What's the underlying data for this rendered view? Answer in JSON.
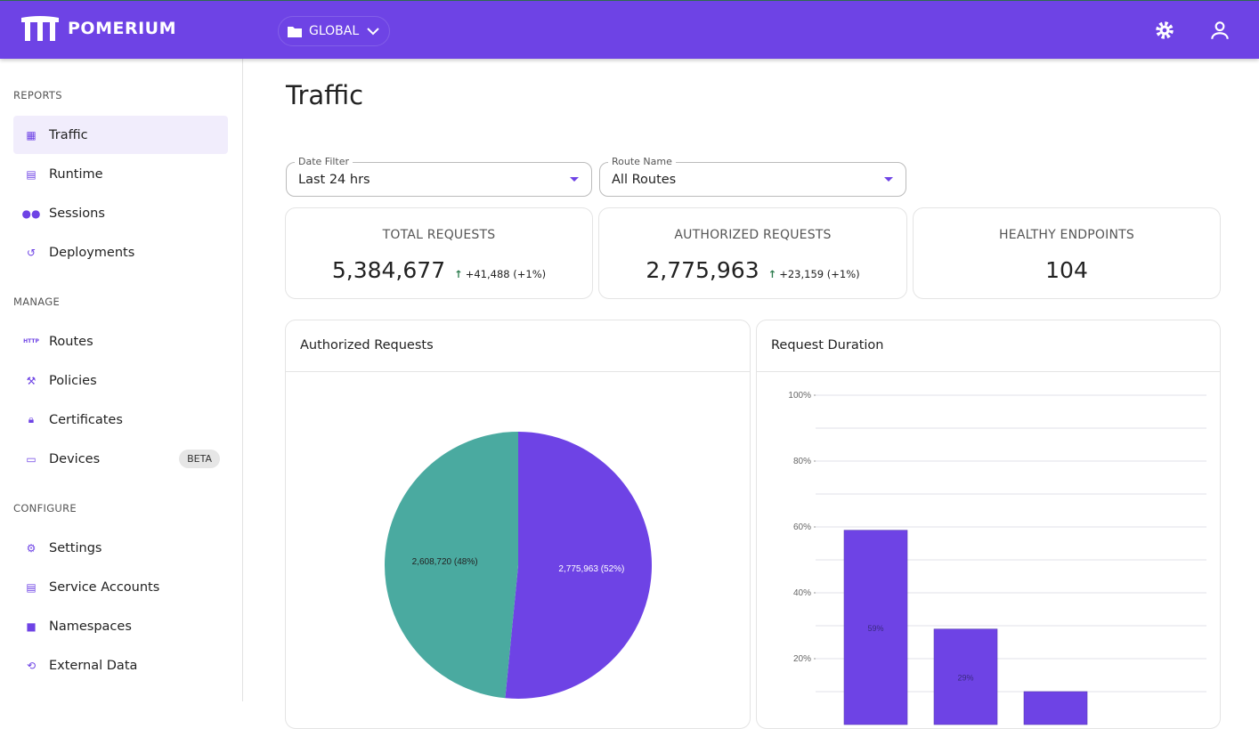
{
  "header": {
    "brand": "POMERIUM",
    "namespace": "GLOBAL",
    "accent": "#6e43e5"
  },
  "sidebar": {
    "sections": [
      {
        "label": "REPORTS",
        "items": [
          {
            "label": "Traffic",
            "icon": "bar-chart-icon",
            "active": true
          },
          {
            "label": "Runtime",
            "icon": "server-icon"
          },
          {
            "label": "Sessions",
            "icon": "people-icon"
          },
          {
            "label": "Deployments",
            "icon": "history-icon"
          }
        ]
      },
      {
        "label": "MANAGE",
        "items": [
          {
            "label": "Routes",
            "icon": "http-icon"
          },
          {
            "label": "Policies",
            "icon": "gavel-icon"
          },
          {
            "label": "Certificates",
            "icon": "lock-icon"
          },
          {
            "label": "Devices",
            "icon": "devices-icon",
            "badge": "BETA"
          }
        ]
      },
      {
        "label": "CONFIGURE",
        "items": [
          {
            "label": "Settings",
            "icon": "gear-icon"
          },
          {
            "label": "Service Accounts",
            "icon": "server-icon"
          },
          {
            "label": "Namespaces",
            "icon": "folder-icon"
          },
          {
            "label": "External Data",
            "icon": "sync-icon"
          }
        ]
      }
    ]
  },
  "page": {
    "title": "Traffic"
  },
  "filters": {
    "date": {
      "label": "Date Filter",
      "value": "Last 24 hrs"
    },
    "route": {
      "label": "Route Name",
      "value": "All Routes"
    }
  },
  "stats": [
    {
      "label": "TOTAL REQUESTS",
      "value": "5,384,677",
      "delta": "+41,488 (+1%)"
    },
    {
      "label": "AUTHORIZED REQUESTS",
      "value": "2,775,963",
      "delta": "+23,159 (+1%)"
    },
    {
      "label": "HEALTHY ENDPOINTS",
      "value": "104"
    }
  ],
  "panels": {
    "pie_title": "Authorized Requests",
    "bar_title": "Request Duration"
  },
  "chart_data": [
    {
      "type": "pie",
      "slices": [
        {
          "label": "2,775,963 (52%)",
          "value": 2775963,
          "color": "#6e43e5"
        },
        {
          "label": "2,608,720 (48%)",
          "value": 2608720,
          "color": "#4aaaa0"
        }
      ]
    },
    {
      "type": "bar",
      "ylim": [
        0,
        100
      ],
      "yticks": [
        "100%",
        "80%",
        "60%",
        "40%",
        "20%"
      ],
      "grid": true,
      "values": [
        59,
        29,
        10
      ],
      "labels": [
        "59%",
        "29%",
        ""
      ],
      "color": "#6e43e5"
    }
  ]
}
